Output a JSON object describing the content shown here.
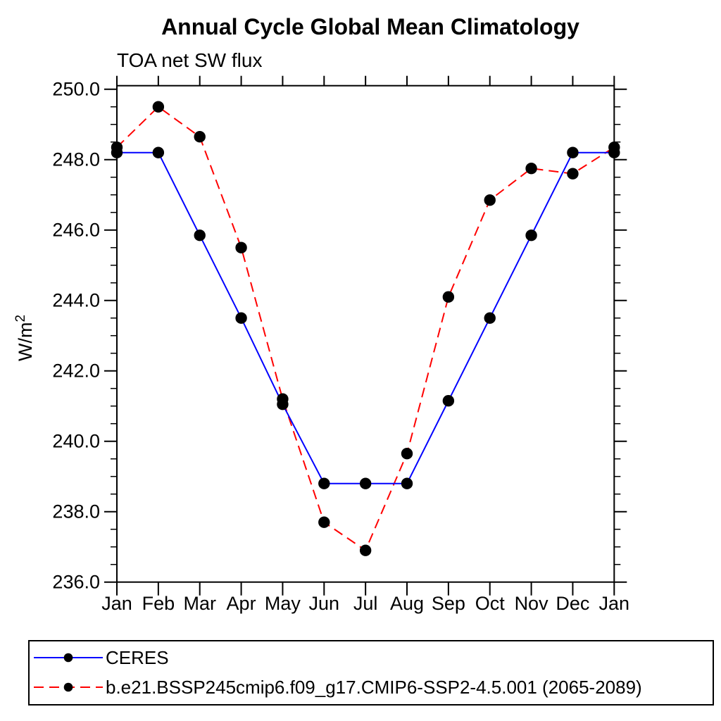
{
  "chart": {
    "title": "Annual Cycle Global Mean Climatology",
    "subtitle": "TOA net SW flux",
    "ylabel_base": "W/m",
    "ylabel_exponent": "2"
  },
  "legend": {
    "items": [
      {
        "label": "CERES"
      },
      {
        "label": "b.e21.BSSP245cmip6.f09_g17.CMIP6-SSP2-4.5.001 (2065-2089)"
      }
    ]
  },
  "chart_data": {
    "type": "line",
    "title": "Annual Cycle Global Mean Climatology",
    "subtitle": "TOA net SW flux",
    "ylabel": "W/m2",
    "categories": [
      "Jan",
      "Feb",
      "Mar",
      "Apr",
      "May",
      "Jun",
      "Jul",
      "Aug",
      "Sep",
      "Oct",
      "Nov",
      "Dec",
      "Jan"
    ],
    "ylim": [
      236.0,
      250.1
    ],
    "yticks_major": [
      236.0,
      238.0,
      240.0,
      242.0,
      244.0,
      246.0,
      248.0,
      250.0
    ],
    "ytick_minor_step": 0.5,
    "grid": false,
    "legend_position": "below-left",
    "axis_color": "#000000",
    "series": [
      {
        "name": "CERES",
        "color": "#0000ff",
        "style": "solid",
        "dash": "",
        "marker": "circle",
        "marker_color": "#000000",
        "values": [
          248.2,
          248.2,
          245.85,
          243.5,
          241.05,
          238.8,
          238.8,
          238.8,
          241.15,
          243.5,
          245.85,
          248.2,
          248.2
        ]
      },
      {
        "name": "b.e21.BSSP245cmip6.f09_g17.CMIP6-SSP2-4.5.001 (2065-2089)",
        "color": "#ff0000",
        "style": "dashed",
        "dash": "14,8",
        "marker": "circle",
        "marker_color": "#000000",
        "values": [
          248.35,
          249.5,
          248.65,
          245.5,
          241.2,
          237.7,
          236.9,
          239.65,
          244.1,
          246.85,
          247.75,
          247.6,
          248.35
        ]
      }
    ]
  }
}
